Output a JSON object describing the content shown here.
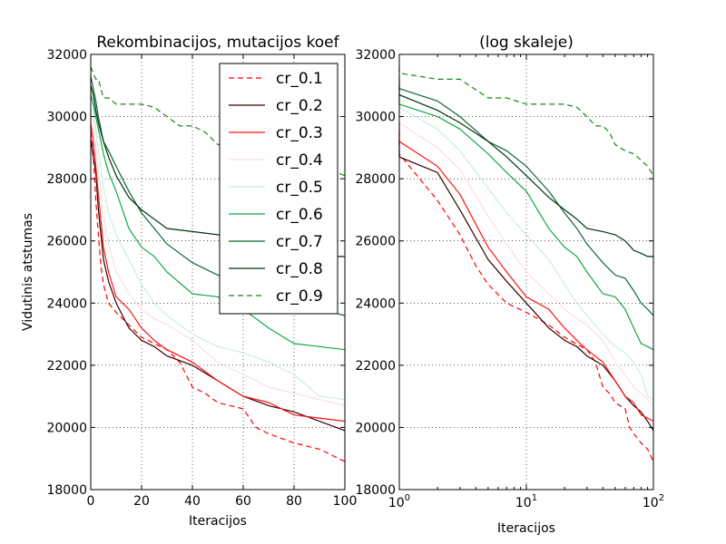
{
  "chart_data": [
    {
      "type": "line",
      "title": "Rekombinacijos, mutacijos koef",
      "xlabel": "Iteracijos",
      "ylabel": "Vidutinis atstumas",
      "xscale": "linear",
      "xlim": [
        0,
        100
      ],
      "ylim": [
        18000,
        32000
      ],
      "xticks": [
        "0",
        "20",
        "40",
        "60",
        "80",
        "100"
      ],
      "yticks": [
        "18000",
        "20000",
        "22000",
        "24000",
        "26000",
        "28000",
        "30000",
        "32000"
      ],
      "grid": true,
      "legend": "top-right",
      "series": [
        {
          "name": "cr_0.1",
          "color": "#ff0000",
          "style": "dashed",
          "x": [
            0,
            1,
            2,
            3,
            4,
            5,
            7,
            10,
            15,
            20,
            30,
            35,
            40,
            45,
            50,
            60,
            65,
            70,
            80,
            90,
            100
          ],
          "y": [
            29500,
            28800,
            27300,
            26200,
            25200,
            24600,
            24000,
            23700,
            23300,
            22900,
            22500,
            22100,
            21300,
            21100,
            20800,
            20600,
            20000,
            19800,
            19500,
            19300,
            18900
          ]
        },
        {
          "name": "cr_0.2",
          "color": "#330000",
          "style": "solid",
          "x": [
            0,
            1,
            2,
            3,
            5,
            7,
            10,
            15,
            20,
            25,
            30,
            40,
            50,
            60,
            70,
            80,
            90,
            100
          ],
          "y": [
            29300,
            28700,
            28200,
            27000,
            25400,
            24700,
            24000,
            23200,
            22800,
            22600,
            22300,
            22000,
            21500,
            21000,
            20700,
            20500,
            20200,
            19900
          ]
        },
        {
          "name": "cr_0.3",
          "color": "#ff1111",
          "style": "solid",
          "x": [
            0,
            1,
            2,
            3,
            5,
            7,
            10,
            15,
            20,
            25,
            30,
            40,
            50,
            60,
            70,
            80,
            90,
            100
          ],
          "y": [
            29800,
            29200,
            28400,
            27500,
            25800,
            25000,
            24200,
            23800,
            23200,
            22800,
            22500,
            22100,
            21500,
            21000,
            20800,
            20400,
            20300,
            20200
          ]
        },
        {
          "name": "cr_0.4",
          "color": "#ffdddd",
          "style": "solid",
          "x": [
            0,
            1,
            2,
            3,
            5,
            7,
            10,
            15,
            20,
            25,
            30,
            40,
            50,
            60,
            70,
            80,
            90,
            100
          ],
          "y": [
            30200,
            29800,
            29000,
            28300,
            26800,
            25900,
            25000,
            24300,
            23800,
            23500,
            23300,
            22800,
            22100,
            21700,
            21300,
            21100,
            20900,
            20700
          ]
        },
        {
          "name": "cr_0.5",
          "color": "#cceedd",
          "style": "solid",
          "x": [
            0,
            1,
            2,
            3,
            5,
            7,
            10,
            15,
            20,
            25,
            30,
            40,
            50,
            60,
            70,
            80,
            90,
            100
          ],
          "y": [
            30800,
            30300,
            29600,
            28900,
            27700,
            26900,
            26200,
            25400,
            24600,
            24000,
            23600,
            23000,
            22600,
            22400,
            22100,
            21700,
            21000,
            20900
          ]
        },
        {
          "name": "cr_0.6",
          "color": "#11aa44",
          "style": "solid",
          "x": [
            0,
            1,
            2,
            3,
            5,
            7,
            10,
            15,
            20,
            25,
            30,
            40,
            50,
            60,
            70,
            80,
            90,
            100
          ],
          "y": [
            30700,
            30400,
            30000,
            29600,
            28800,
            28200,
            27600,
            26400,
            25800,
            25500,
            25000,
            24300,
            24200,
            23800,
            23200,
            22700,
            22600,
            22500
          ]
        },
        {
          "name": "cr_0.7",
          "color": "#116633",
          "style": "solid",
          "x": [
            0,
            1,
            2,
            3,
            5,
            7,
            10,
            15,
            20,
            25,
            30,
            40,
            50,
            60,
            70,
            80,
            90,
            100
          ],
          "y": [
            31300,
            30900,
            30500,
            30000,
            29200,
            28900,
            28400,
            27600,
            26900,
            26400,
            25900,
            25300,
            24900,
            24800,
            24400,
            24000,
            23800,
            23600
          ]
        },
        {
          "name": "cr_0.8",
          "color": "#003311",
          "style": "solid",
          "x": [
            0,
            1,
            2,
            3,
            5,
            7,
            10,
            15,
            20,
            25,
            30,
            40,
            50,
            60,
            70,
            80,
            90,
            100
          ],
          "y": [
            31000,
            30700,
            30200,
            29800,
            29200,
            28700,
            28100,
            27400,
            27000,
            26700,
            26400,
            26300,
            26200,
            26000,
            25700,
            25600,
            25500,
            25500
          ]
        },
        {
          "name": "cr_0.9",
          "color": "#118811",
          "style": "dashed",
          "x": [
            0,
            1,
            2,
            3,
            5,
            7,
            10,
            15,
            20,
            25,
            30,
            35,
            40,
            45,
            50,
            60,
            70,
            80,
            90,
            100
          ],
          "y": [
            31600,
            31400,
            31200,
            31200,
            30600,
            30600,
            30400,
            30400,
            30400,
            30300,
            30000,
            29700,
            29700,
            29500,
            29100,
            28900,
            28800,
            28600,
            28400,
            28100
          ]
        }
      ]
    },
    {
      "type": "line",
      "title": "(log skaleje)",
      "xlabel": "Iteracijos",
      "ylabel": "",
      "xscale": "log",
      "xlim": [
        1,
        100
      ],
      "ylim": [
        18000,
        32000
      ],
      "xticks": [
        "10^0",
        "10^1",
        "10^2"
      ],
      "yticks": [
        "18000",
        "20000",
        "22000",
        "24000",
        "26000",
        "28000",
        "30000",
        "32000"
      ],
      "grid": true,
      "series_ref": "same data as first chart, x on log10 axis"
    }
  ]
}
